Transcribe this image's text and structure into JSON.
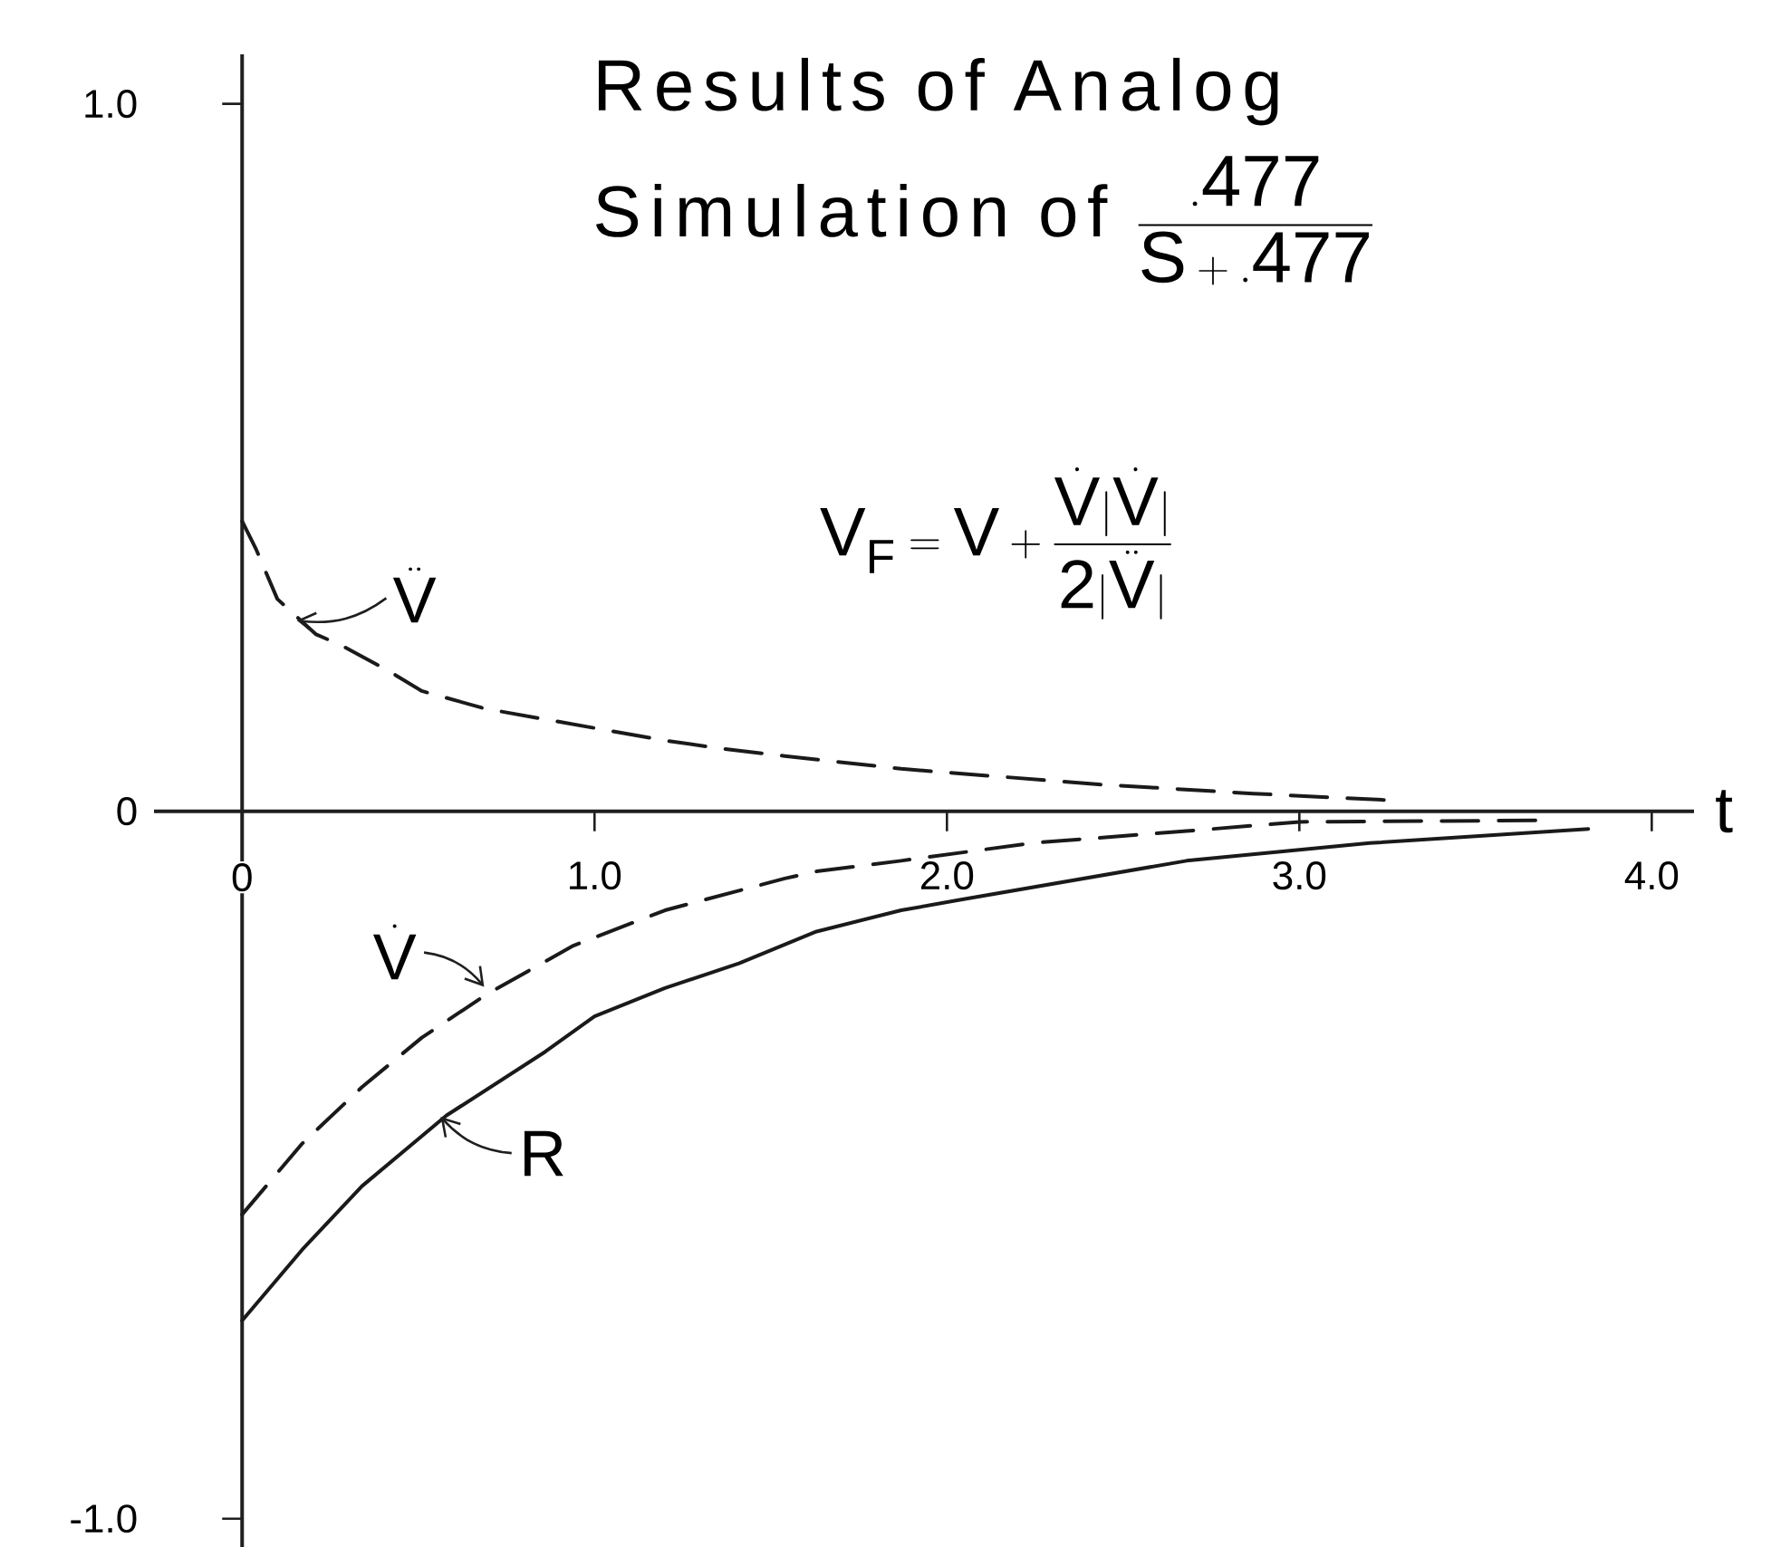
{
  "chart_data": {
    "type": "line",
    "title": "\\begin{array}{l}\\text{Results of Analog}\\\\ \\text{Simulation of }\\dfrac{.477}{S+.477}\\end{array}",
    "xlabel": "t",
    "xlim": [
      -0.25,
      4.12
    ],
    "ylim": [
      -1.04,
      1.07
    ],
    "xticks": [
      {
        "value": 0,
        "label": "0"
      },
      {
        "value": 1,
        "label": "1.0"
      },
      {
        "value": 2,
        "label": "2.0"
      },
      {
        "value": 3,
        "label": "3.0"
      },
      {
        "value": 4,
        "label": "4.0"
      }
    ],
    "yticks": [
      {
        "value": -1,
        "label": "-1.0"
      },
      {
        "value": 0,
        "label": "0"
      },
      {
        "value": 1,
        "label": "1.0"
      }
    ],
    "series": [
      {
        "color": "#1a1a1a",
        "line_style": "dashed",
        "x": [
          0,
          0.04,
          0.1,
          0.21,
          0.28,
          0.41,
          0.51,
          0.69,
          0.86,
          1.03,
          1.2,
          1.37,
          1.54,
          1.87,
          1.97,
          2.43,
          2.87,
          3.24
        ],
        "values": [
          0.41,
          0.37,
          0.3,
          0.25,
          0.235,
          0.2,
          0.17,
          0.145,
          0.13,
          0.115,
          0.1,
          0.088,
          0.078,
          0.06,
          0.056,
          0.038,
          0.025,
          0.016
        ]
      },
      {
        "color": "#1a1a1a",
        "line_style": "dashed",
        "x": [
          0,
          0.17,
          0.34,
          0.51,
          0.69,
          0.94,
          1.2,
          1.54,
          1.63,
          1.87,
          2.24,
          2.68,
          3.0,
          3.67
        ],
        "values": [
          -0.57,
          -0.47,
          -0.39,
          -0.32,
          -0.26,
          -0.19,
          -0.14,
          -0.095,
          -0.085,
          -0.07,
          -0.045,
          -0.028,
          -0.015,
          -0.013
        ]
      },
      {
        "color": "#1a1a1a",
        "line_style": "solid",
        "x": [
          0,
          0.17,
          0.34,
          0.58,
          0.86,
          1.0,
          1.2,
          1.41,
          1.63,
          1.87,
          2.04,
          2.68,
          3.2,
          3.82
        ],
        "values": [
          -0.72,
          -0.62,
          -0.53,
          -0.43,
          -0.34,
          -0.29,
          -0.25,
          -0.215,
          -0.17,
          -0.14,
          -0.125,
          -0.07,
          -0.045,
          -0.025
        ]
      }
    ],
    "annotations": [
      "V_F = V + \\frac{\\dot{V}|\\dot{V}|}{2|\\ddot{V}|}",
      {
        "text": "\\ddot{V}",
        "x": 0.15,
        "y": 0.27
      },
      {
        "text": "\\dot{V}",
        "x": 0.69,
        "y": -0.25
      },
      {
        "text": "R",
        "x": 0.56,
        "y": -0.43
      }
    ]
  }
}
